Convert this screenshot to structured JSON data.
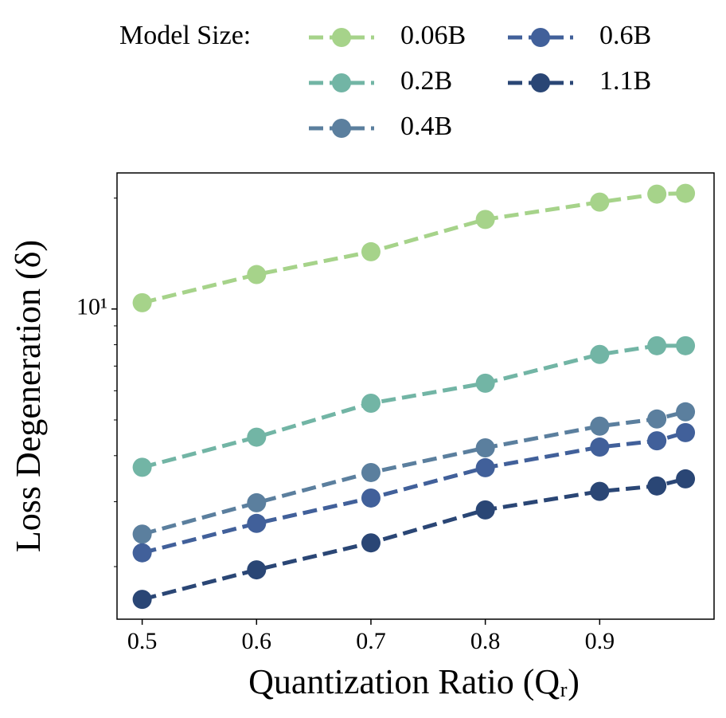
{
  "chart_data": {
    "type": "line",
    "x_label": "Quantization Ratio (Qᵣ)",
    "y_label": "Loss Degeneration (δ)",
    "legend_title": "Model Size:",
    "x": [
      0.5,
      0.6,
      0.7,
      0.8,
      0.9,
      0.95,
      0.975
    ],
    "series": [
      {
        "name": "0.06B",
        "color": "#a6d38a",
        "values": [
          10.4,
          12.4,
          14.3,
          17.5,
          19.5,
          20.5,
          20.6
        ]
      },
      {
        "name": "0.2B",
        "color": "#72b5a5",
        "values": [
          3.72,
          4.49,
          5.55,
          6.29,
          7.53,
          7.95,
          7.95
        ]
      },
      {
        "name": "0.4B",
        "color": "#5b7f9e",
        "values": [
          2.45,
          2.98,
          3.6,
          4.2,
          4.81,
          5.03,
          5.26
        ]
      },
      {
        "name": "0.6B",
        "color": "#41609a",
        "values": [
          2.18,
          2.62,
          3.07,
          3.71,
          4.22,
          4.39,
          4.62
        ]
      },
      {
        "name": "1.1B",
        "color": "#2a4675",
        "values": [
          1.63,
          1.96,
          2.32,
          2.85,
          3.2,
          3.31,
          3.46
        ]
      }
    ],
    "xlim": [
      0.478,
      1.0
    ],
    "xticks": [
      0.5,
      0.6,
      0.7,
      0.8,
      0.9
    ],
    "ylim": [
      1.44,
      23.4
    ],
    "y_log": true,
    "yticks": [
      {
        "value": 10,
        "label": "10¹"
      }
    ],
    "minor_yticks": [
      2,
      3,
      4,
      5,
      6,
      7,
      8,
      9,
      20
    ],
    "grid": false,
    "legend_position": "top"
  }
}
